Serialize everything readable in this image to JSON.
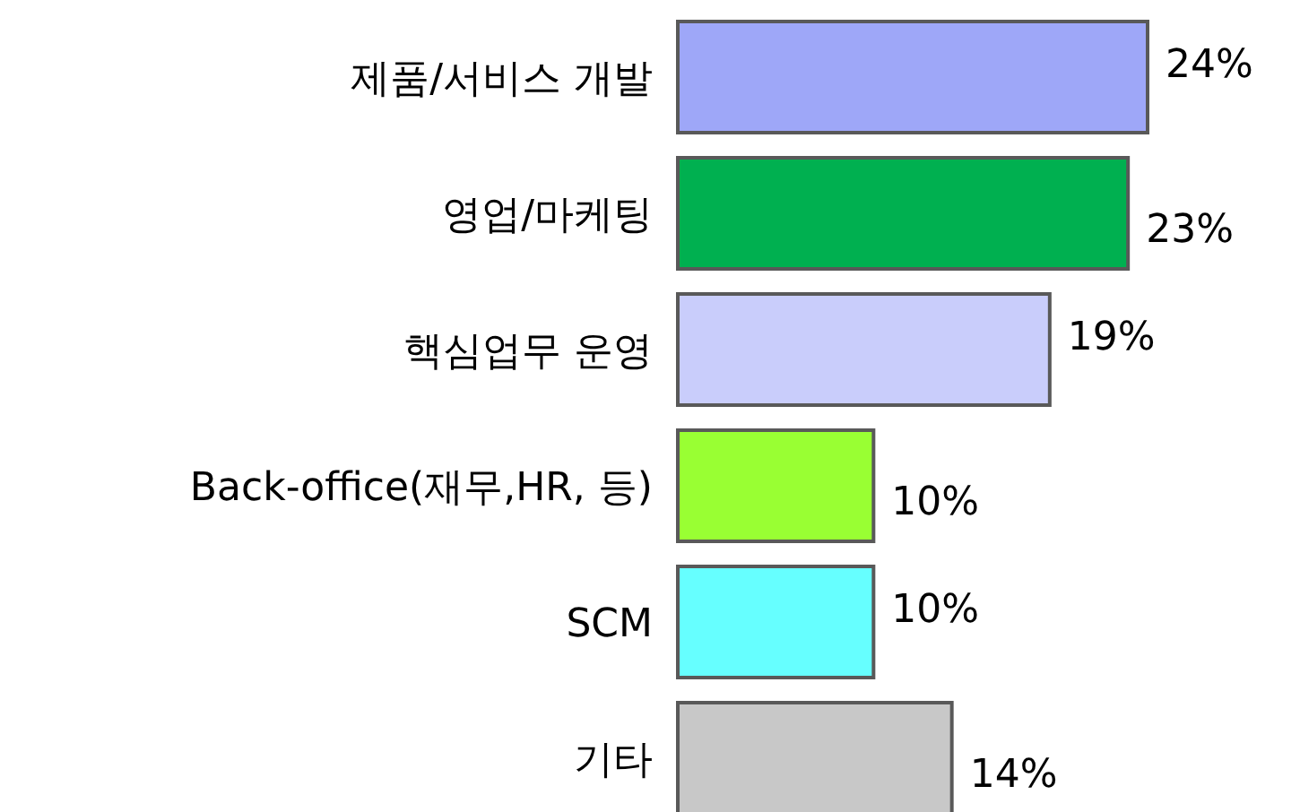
{
  "chart_data": {
    "type": "bar",
    "orientation": "horizontal",
    "categories": [
      "제품/서비스 개발",
      "영업/마케팅",
      "핵심업무 운영",
      "Back-office(재무,HR, 등)",
      "SCM",
      "기타"
    ],
    "values": [
      24,
      23,
      19,
      10,
      10,
      14
    ],
    "value_labels": [
      "24%",
      "23%",
      "19%",
      "10%",
      "10%",
      "14%"
    ],
    "colors": [
      "#9ea7f8",
      "#00b050",
      "#c9cdfb",
      "#99ff33",
      "#66ffff",
      "#c8c8c8"
    ]
  }
}
